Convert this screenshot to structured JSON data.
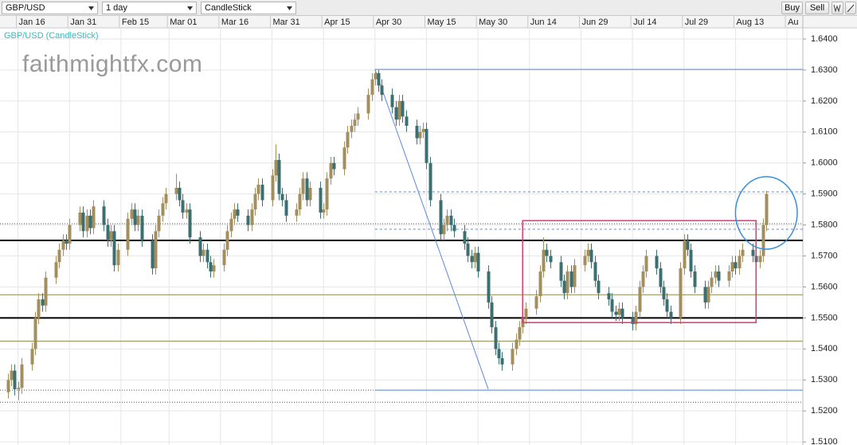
{
  "toolbar": {
    "symbol": "GBP/USD",
    "interval": "1 day",
    "chart_type": "CandleStick",
    "buttons": [
      "Buy",
      "Sell"
    ]
  },
  "chart_data": {
    "type": "candlestick",
    "title": "GBP/USD (CandleStick)",
    "watermark": "faithmightfx.com",
    "up_color": "#a38f5e",
    "down_color": "#3c6f72",
    "grid": true,
    "x": [
      "Jan 13",
      "Jan 14",
      "Jan 15",
      "Jan 16",
      "Jan 17",
      "Jan 20",
      "Jan 21",
      "Jan 22",
      "Jan 23",
      "Jan 24",
      "Jan 27",
      "Jan 28",
      "Jan 29",
      "Jan 30",
      "Jan 31",
      "Feb 3",
      "Feb 4",
      "Feb 5",
      "Feb 6",
      "Feb 7",
      "Feb 10",
      "Feb 11",
      "Feb 12",
      "Feb 13",
      "Feb 14",
      "Feb 17",
      "Feb 18",
      "Feb 19",
      "Feb 20",
      "Feb 21",
      "Feb 24",
      "Feb 25",
      "Feb 26",
      "Feb 27",
      "Feb 28",
      "Mar 3",
      "Mar 4",
      "Mar 5",
      "Mar 6",
      "Mar 7",
      "Mar 10",
      "Mar 11",
      "Mar 12",
      "Mar 13",
      "Mar 14",
      "Mar 17",
      "Mar 18",
      "Mar 19",
      "Mar 20",
      "Mar 21",
      "Mar 24",
      "Mar 25",
      "Mar 26",
      "Mar 27",
      "Mar 28",
      "Mar 31",
      "Apr 1",
      "Apr 2",
      "Apr 3",
      "Apr 4",
      "Apr 7",
      "Apr 8",
      "Apr 9",
      "Apr 10",
      "Apr 11",
      "Apr 14",
      "Apr 15",
      "Apr 16",
      "Apr 17",
      "Apr 18",
      "Apr 21",
      "Apr 22",
      "Apr 23",
      "Apr 24",
      "Apr 25",
      "Apr 28",
      "Apr 29",
      "Apr 30",
      "May 1",
      "May 2",
      "May 5",
      "May 6",
      "May 7",
      "May 8",
      "May 9",
      "May 12",
      "May 13",
      "May 14",
      "May 15",
      "May 16",
      "May 19",
      "May 20",
      "May 21",
      "May 22",
      "May 23",
      "May 26",
      "May 27",
      "May 28",
      "May 29",
      "May 30",
      "Jun 2",
      "Jun 3",
      "Jun 4",
      "Jun 5",
      "Jun 6",
      "Jun 9",
      "Jun 10",
      "Jun 11",
      "Jun 12",
      "Jun 13",
      "Jun 16",
      "Jun 17",
      "Jun 18",
      "Jun 19",
      "Jun 20",
      "Jun 23",
      "Jun 24",
      "Jun 25",
      "Jun 26",
      "Jun 27",
      "Jun 30",
      "Jul 1",
      "Jul 2",
      "Jul 3",
      "Jul 4",
      "Jul 7",
      "Jul 8",
      "Jul 9",
      "Jul 10",
      "Jul 11",
      "Jul 14",
      "Jul 15",
      "Jul 16",
      "Jul 17",
      "Jul 18",
      "Jul 21",
      "Jul 22",
      "Jul 23",
      "Jul 24",
      "Jul 25",
      "Jul 28",
      "Jul 29",
      "Jul 30",
      "Jul 31",
      "Aug 1",
      "Aug 4",
      "Aug 5",
      "Aug 6",
      "Aug 7",
      "Aug 8",
      "Aug 11",
      "Aug 12",
      "Aug 13",
      "Aug 14",
      "Aug 15",
      "Aug 18",
      "Aug 19",
      "Aug 20",
      "Aug 21",
      "Aug 22"
    ],
    "open": [
      1.526,
      1.53,
      1.533,
      1.527,
      1.5275,
      1.535,
      1.54,
      1.55,
      1.556,
      1.554,
      1.563,
      1.568,
      1.572,
      1.575,
      1.574,
      1.58,
      1.584,
      1.578,
      1.583,
      1.579,
      1.586,
      1.58,
      1.575,
      1.578,
      1.567,
      1.572,
      1.582,
      1.585,
      1.58,
      1.583,
      1.575,
      1.566,
      1.578,
      1.583,
      1.587,
      1.59,
      1.592,
      1.588,
      1.584,
      1.585,
      1.576,
      1.57,
      1.572,
      1.568,
      1.565,
      1.567,
      1.572,
      1.578,
      1.582,
      1.585,
      1.583,
      1.58,
      1.585,
      1.59,
      1.593,
      1.588,
      1.596,
      1.601,
      1.59,
      1.588,
      1.583,
      1.585,
      1.59,
      1.595,
      1.588,
      1.592,
      1.584,
      1.585,
      1.595,
      1.6,
      1.598,
      1.605,
      1.61,
      1.612,
      1.614,
      1.616,
      1.622,
      1.627,
      1.629,
      1.625,
      1.622,
      1.618,
      1.614,
      1.62,
      1.615,
      1.612,
      1.608,
      1.61,
      1.611,
      1.6,
      1.588,
      1.577,
      1.58,
      1.583,
      1.58,
      1.578,
      1.574,
      1.57,
      1.568,
      1.571,
      1.565,
      1.555,
      1.547,
      1.54,
      1.537,
      1.535,
      1.54,
      1.543,
      1.547,
      1.55,
      1.553,
      1.557,
      1.565,
      1.572,
      1.57,
      1.568,
      1.562,
      1.558,
      1.565,
      1.56,
      1.567,
      1.57,
      1.572,
      1.568,
      1.562,
      1.558,
      1.556,
      1.552,
      1.551,
      1.553,
      1.55,
      1.548,
      1.552,
      1.56,
      1.565,
      1.57,
      1.566,
      1.56,
      1.556,
      1.552,
      1.55,
      1.566,
      1.575,
      1.572,
      1.565,
      1.56,
      1.555,
      1.56,
      1.563,
      1.565,
      1.562,
      1.565,
      1.568,
      1.566,
      1.57,
      1.572,
      1.57,
      1.568,
      1.57,
      1.58
    ],
    "high": [
      1.532,
      1.535,
      1.535,
      1.5295,
      1.537,
      1.542,
      1.552,
      1.558,
      1.558,
      1.565,
      1.57,
      1.574,
      1.577,
      1.577,
      1.582,
      1.586,
      1.586,
      1.585,
      1.585,
      1.588,
      1.588,
      1.582,
      1.58,
      1.58,
      1.574,
      1.584,
      1.587,
      1.587,
      1.585,
      1.585,
      1.577,
      1.58,
      1.585,
      1.589,
      1.592,
      1.5965,
      1.594,
      1.59,
      1.587,
      1.587,
      1.578,
      1.574,
      1.574,
      1.57,
      1.569,
      1.574,
      1.58,
      1.584,
      1.587,
      1.587,
      1.585,
      1.587,
      1.592,
      1.595,
      1.595,
      1.598,
      1.606,
      1.603,
      1.592,
      1.59,
      1.587,
      1.592,
      1.597,
      1.597,
      1.594,
      1.594,
      1.587,
      1.597,
      1.602,
      1.602,
      1.607,
      1.612,
      1.614,
      1.616,
      1.618,
      1.624,
      1.629,
      1.63,
      1.63,
      1.627,
      1.624,
      1.62,
      1.622,
      1.622,
      1.617,
      1.614,
      1.612,
      1.613,
      1.613,
      1.602,
      1.59,
      1.582,
      1.585,
      1.585,
      1.582,
      1.58,
      1.576,
      1.572,
      1.573,
      1.573,
      1.567,
      1.557,
      1.549,
      1.542,
      1.539,
      1.542,
      1.545,
      1.549,
      1.552,
      1.555,
      1.559,
      1.567,
      1.576,
      1.574,
      1.572,
      1.57,
      1.564,
      1.567,
      1.567,
      1.569,
      1.572,
      1.574,
      1.574,
      1.57,
      1.564,
      1.56,
      1.558,
      1.554,
      1.555,
      1.555,
      1.552,
      1.554,
      1.562,
      1.567,
      1.572,
      1.572,
      1.568,
      1.562,
      1.558,
      1.554,
      1.568,
      1.577,
      1.577,
      1.574,
      1.567,
      1.562,
      1.562,
      1.565,
      1.567,
      1.567,
      1.567,
      1.57,
      1.57,
      1.572,
      1.574,
      1.574,
      1.572,
      1.572,
      1.582,
      1.591
    ],
    "low": [
      1.524,
      1.528,
      1.525,
      1.5235,
      1.5255,
      1.533,
      1.538,
      1.548,
      1.552,
      1.552,
      1.561,
      1.566,
      1.57,
      1.572,
      1.572,
      1.578,
      1.576,
      1.576,
      1.577,
      1.577,
      1.578,
      1.573,
      1.573,
      1.565,
      1.565,
      1.57,
      1.58,
      1.578,
      1.578,
      1.573,
      1.564,
      1.564,
      1.576,
      1.581,
      1.585,
      1.588,
      1.586,
      1.582,
      1.582,
      1.574,
      1.568,
      1.568,
      1.566,
      1.563,
      1.563,
      1.565,
      1.57,
      1.576,
      1.58,
      1.581,
      1.578,
      1.578,
      1.583,
      1.588,
      1.586,
      1.586,
      1.594,
      1.588,
      1.586,
      1.581,
      1.581,
      1.583,
      1.588,
      1.586,
      1.586,
      1.582,
      1.582,
      1.583,
      1.593,
      1.596,
      1.596,
      1.603,
      1.608,
      1.61,
      1.612,
      1.614,
      1.62,
      1.625,
      1.623,
      1.62,
      1.616,
      1.612,
      1.612,
      1.613,
      1.61,
      1.606,
      1.606,
      1.608,
      1.598,
      1.586,
      1.575,
      1.575,
      1.578,
      1.578,
      1.576,
      1.572,
      1.568,
      1.566,
      1.566,
      1.563,
      1.553,
      1.545,
      1.538,
      1.535,
      1.533,
      1.533,
      1.538,
      1.541,
      1.545,
      1.548,
      1.551,
      1.555,
      1.563,
      1.568,
      1.566,
      1.56,
      1.556,
      1.556,
      1.558,
      1.558,
      1.565,
      1.568,
      1.566,
      1.56,
      1.556,
      1.554,
      1.55,
      1.549,
      1.549,
      1.548,
      1.546,
      1.546,
      1.55,
      1.558,
      1.563,
      1.564,
      1.558,
      1.554,
      1.55,
      1.548,
      1.548,
      1.564,
      1.57,
      1.563,
      1.558,
      1.553,
      1.553,
      1.558,
      1.561,
      1.56,
      1.56,
      1.563,
      1.564,
      1.564,
      1.568,
      1.568,
      1.566,
      1.566,
      1.568,
      1.578
    ],
    "close": [
      1.53,
      1.533,
      1.527,
      1.5275,
      1.535,
      1.54,
      1.55,
      1.556,
      1.554,
      1.563,
      1.568,
      1.572,
      1.575,
      1.574,
      1.58,
      1.584,
      1.578,
      1.583,
      1.579,
      1.586,
      1.58,
      1.575,
      1.578,
      1.567,
      1.572,
      1.582,
      1.585,
      1.58,
      1.583,
      1.575,
      1.566,
      1.578,
      1.583,
      1.587,
      1.59,
      1.592,
      1.588,
      1.584,
      1.585,
      1.576,
      1.57,
      1.572,
      1.568,
      1.565,
      1.567,
      1.572,
      1.578,
      1.582,
      1.585,
      1.583,
      1.58,
      1.585,
      1.59,
      1.593,
      1.588,
      1.596,
      1.601,
      1.59,
      1.588,
      1.583,
      1.585,
      1.59,
      1.595,
      1.588,
      1.592,
      1.584,
      1.585,
      1.595,
      1.6,
      1.598,
      1.605,
      1.61,
      1.612,
      1.614,
      1.616,
      1.622,
      1.627,
      1.629,
      1.625,
      1.622,
      1.618,
      1.614,
      1.62,
      1.615,
      1.612,
      1.608,
      1.61,
      1.611,
      1.6,
      1.588,
      1.577,
      1.58,
      1.583,
      1.58,
      1.578,
      1.574,
      1.57,
      1.568,
      1.571,
      1.565,
      1.555,
      1.547,
      1.54,
      1.537,
      1.535,
      1.54,
      1.543,
      1.547,
      1.55,
      1.553,
      1.557,
      1.565,
      1.572,
      1.57,
      1.568,
      1.562,
      1.558,
      1.565,
      1.56,
      1.567,
      1.57,
      1.572,
      1.568,
      1.562,
      1.558,
      1.556,
      1.552,
      1.551,
      1.553,
      1.55,
      1.548,
      1.552,
      1.56,
      1.565,
      1.57,
      1.566,
      1.56,
      1.556,
      1.552,
      1.55,
      1.566,
      1.575,
      1.572,
      1.565,
      1.56,
      1.555,
      1.56,
      1.563,
      1.565,
      1.562,
      1.565,
      1.568,
      1.566,
      1.57,
      1.572,
      1.57,
      1.568,
      1.57,
      1.58,
      1.59
    ],
    "xlim": [
      "Jan 11",
      "Aug 31"
    ],
    "xticks": [
      "Jan 16",
      "Jan 31",
      "Feb 15",
      {
        "value": "Mar 1",
        "label": "Mar 01"
      },
      "Mar 16",
      "Mar 31",
      "Apr 15",
      "Apr 30",
      "May 15",
      "May 30",
      "Jun 14",
      "Jun 29",
      "Jul 14",
      "Jul 29",
      "Aug 13",
      {
        "value": "Aug 28",
        "label": "Au"
      }
    ],
    "ylim": [
      1.509,
      1.6436
    ],
    "yticks": [
      {
        "value": 1.64,
        "label": "1.6400"
      },
      {
        "value": 1.63,
        "label": "1.6300"
      },
      {
        "value": 1.62,
        "label": "1.6200"
      },
      {
        "value": 1.61,
        "label": "1.6100"
      },
      {
        "value": 1.6,
        "label": "1.6000"
      },
      {
        "value": 1.59,
        "label": "1.5900"
      },
      {
        "value": 1.58,
        "label": "1.5800"
      },
      {
        "value": 1.57,
        "label": "1.5700"
      },
      {
        "value": 1.56,
        "label": "1.5600"
      },
      {
        "value": 1.55,
        "label": "1.5500"
      },
      {
        "value": 1.54,
        "label": "1.5400"
      },
      {
        "value": 1.53,
        "label": "1.5300"
      },
      {
        "value": 1.52,
        "label": "1.5200"
      },
      {
        "value": 1.51,
        "label": "1.5100"
      }
    ],
    "levels": [
      {
        "value": 1.575,
        "color": "#000000",
        "dash": "bold"
      },
      {
        "value": 1.55,
        "color": "#000000",
        "dash": "bold"
      },
      {
        "value": 1.5575,
        "color": "#8a8a4a",
        "dash": "solid"
      },
      {
        "value": 1.5425,
        "color": "#8a8a4a",
        "dash": "solid"
      },
      {
        "value": 1.5804,
        "color": "#555555",
        "dash": "dotted"
      },
      {
        "value": 1.5267,
        "color": "#555555",
        "dash": "dotted"
      },
      {
        "value": 1.5228,
        "color": "#555555",
        "dash": "dotted"
      },
      {
        "value": 1.6302,
        "color": "#5b8bd6",
        "dash": "solid",
        "start": "Apr 30"
      },
      {
        "value": 1.5267,
        "color": "#5b8bd6",
        "dash": "solid",
        "start": "Apr 30"
      },
      {
        "value": 1.5907,
        "color": "#5b8bd6",
        "dash": "dashed",
        "start": "Apr 30"
      },
      {
        "value": 1.5786,
        "color": "#5b8bd6",
        "dash": "dashed",
        "start": "Apr 30"
      }
    ],
    "trendline": {
      "x": [
        "Apr 30",
        "Jun 2"
      ],
      "y": [
        1.6302,
        1.527
      ],
      "color": "#5b8bd6"
    },
    "box": {
      "x": [
        "Jun 12",
        "Aug 19"
      ],
      "y": [
        1.5485,
        1.5814
      ],
      "color": "#e0357a"
    },
    "ellipse": {
      "x": [
        "Aug 13",
        "Aug 31"
      ],
      "y": [
        1.5722,
        1.5956
      ],
      "color": "#3a8fd8"
    }
  }
}
